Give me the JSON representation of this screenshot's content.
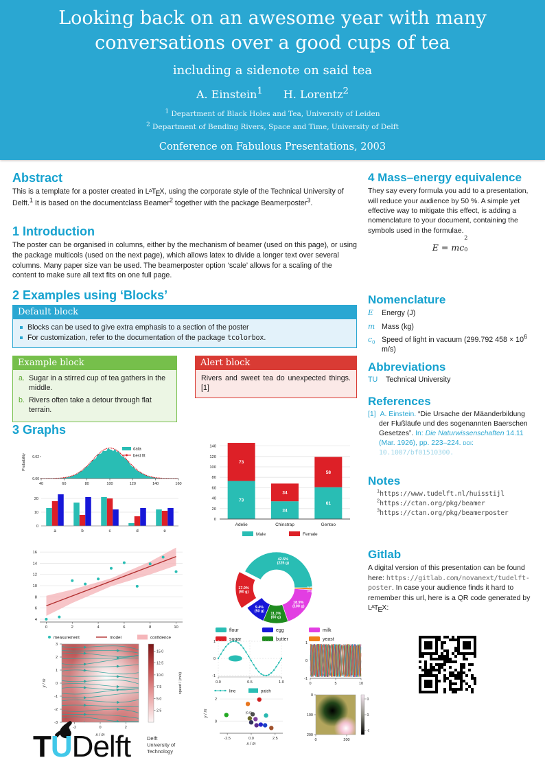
{
  "colors": {
    "header_bg": "#2aa7d2",
    "heading": "#16a2cf",
    "teal": "#29bdb4",
    "red": "#dd2027",
    "blue": "#1717d8",
    "green": "#1f8b1f",
    "magenta": "#e23ee2",
    "orange": "#f08019",
    "pink": "#f5b6ba",
    "darkred": "#b23030",
    "example_green": "#76bf4b",
    "alert_red": "#d93b34"
  },
  "header": {
    "title_line1": "Looking back on an awesome year with many",
    "title_line2": "conversations over a good cups of tea",
    "subtitle": "including a sidenote on said tea",
    "authors": [
      {
        "name": "A. Einstein",
        "sup": "1"
      },
      {
        "name": "H. Lorentz",
        "sup": "2"
      }
    ],
    "affiliations": [
      {
        "sup": "1",
        "text": "Department of Black Holes and Tea, University of Leiden"
      },
      {
        "sup": "2",
        "text": "Department of Bending Rivers, Space and Time, University of Delft"
      }
    ],
    "conference": "Conference on Fabulous Presentations, 2003"
  },
  "abstract": {
    "heading": "Abstract",
    "rich": [
      {
        "t": "This is a template for a poster created in "
      },
      {
        "t": "LaTeX",
        "latex": true
      },
      {
        "t": ", using the corporate style of the Technical University of Delft."
      },
      {
        "t": "1",
        "sup": true
      },
      {
        "t": " It is based on the documentclass Beamer"
      },
      {
        "t": "2",
        "sup": true
      },
      {
        "t": " together with the package Beamerposter"
      },
      {
        "t": "3",
        "sup": true
      },
      {
        "t": "."
      }
    ]
  },
  "introduction": {
    "heading": "1 Introduction",
    "text": "The poster can be organised in columns, either by the mechanism of beamer (used on this page), or using the package multicols (used on the next page), which allows latex to divide a longer text over several columns. Many paper size van be used. The beamerposter option ‘scale’ allows for a scaling of the content to make sure all text fits on one full page."
  },
  "examples": {
    "heading": "2 Examples using ‘Blocks’",
    "default_block": {
      "title": "Default block",
      "bullets": [
        [
          {
            "t": "Blocks can be used to give extra emphasis to a section of the poster"
          }
        ],
        [
          {
            "t": "For customization, refer to the documentation of the package "
          },
          {
            "t": "tcolorbox",
            "mono": true
          },
          {
            "t": "."
          }
        ]
      ]
    },
    "example_block": {
      "title": "Example block",
      "items": [
        {
          "label": "a.",
          "text": "Sugar in a stirred cup of tea gathers in the middle."
        },
        {
          "label": "b.",
          "text": "Rivers often take a detour through flat terrain."
        }
      ]
    },
    "alert_block": {
      "title": "Alert block",
      "text": "Rivers and sweet tea do unexpected things.[1]"
    }
  },
  "graphs": {
    "heading": "3 Graphs"
  },
  "right": {
    "mass_energy": {
      "heading": "4 Mass–energy equivalence",
      "text": "They say every formula you add to a presentation, will reduce your audience by 50 %. A simple yet effective way to mitigate this effect, is adding a nomenclature to your document, containing the symbols used in the formulae.",
      "formula": {
        "lhs": "E",
        "rel": " = ",
        "base": "mc",
        "sub": "0",
        "sup": "2"
      }
    },
    "nomenclature": {
      "heading": "Nomenclature",
      "rows": [
        {
          "sym": "E",
          "sym_sub": "",
          "def": [
            {
              "t": "Energy (J)"
            }
          ]
        },
        {
          "sym": "m",
          "sym_sub": "",
          "def": [
            {
              "t": "Mass (kg)"
            }
          ]
        },
        {
          "sym": "c",
          "sym_sub": "0",
          "def": [
            {
              "t": "Speed of light in vacuum (299.792 458 × 10"
            },
            {
              "t": "6",
              "sup": true
            },
            {
              "t": " m/s)"
            }
          ]
        }
      ]
    },
    "abbreviations": {
      "heading": "Abbreviations",
      "rows": [
        {
          "abbr": "TU",
          "def": "Technical University"
        }
      ]
    },
    "references": {
      "heading": "References",
      "items": [
        {
          "label": "[1]",
          "rich": [
            {
              "t": "A. Einstein. ",
              "cyan": true
            },
            {
              "t": "“Die Ursache der Mäanderbildung der Flußläufe und des sogenannten Baerschen Gesetzes”. "
            },
            {
              "t": "In: ",
              "cyan": true
            },
            {
              "t": "Die Naturwissenschaften ",
              "cyan": true,
              "italic": true
            },
            {
              "t": "14.11 (Mar. 1926), pp. 223–224. ",
              "cyan": true
            },
            {
              "t": "doi: ",
              "cyan": true,
              "smallcaps": true
            },
            {
              "t": "10.1007/bf01510300.",
              "mono": true,
              "lightcyan": true,
              "link": true
            }
          ]
        }
      ]
    },
    "notes": {
      "heading": "Notes",
      "items": [
        {
          "sup": "1",
          "url": "https://www.tudelft.nl/huisstijl"
        },
        {
          "sup": "2",
          "url": "https://ctan.org/pkg/beamer"
        },
        {
          "sup": "3",
          "url": "https://ctan.org/pkg/beamerposter"
        }
      ]
    },
    "gitlab": {
      "heading": "Gitlab",
      "rich": [
        {
          "t": "A digital version of this presentation can be found here: "
        },
        {
          "t": "https://gitlab.com/novanext/tudelft-poster",
          "mono": true,
          "gray": true,
          "link": true
        },
        {
          "t": ". In case your audience finds it hard to remember this url, here is a QR code generated by "
        },
        {
          "t": "LaTeX",
          "latex": true
        },
        {
          "t": ":"
        }
      ]
    }
  },
  "logo": {
    "t": "T",
    "u": "U",
    "delft": "Delft",
    "sub_lines": [
      "Delft",
      "University of",
      "Technology"
    ]
  },
  "chart_data": [
    {
      "id": "hist_fit",
      "type": "area",
      "ylabel": "Probability",
      "xlim": [
        40,
        160
      ],
      "ylim": [
        0,
        0.03
      ],
      "xticks": [
        40,
        60,
        80,
        100,
        120,
        140,
        160
      ],
      "yticks": [
        0,
        0.02
      ],
      "ytick_labels": [
        "0.00",
        "0.02"
      ],
      "gauss": {
        "mean": 100,
        "sd": 15,
        "peak": 0.027
      },
      "legend": [
        {
          "label": "data",
          "color": "teal",
          "kind": "patch"
        },
        {
          "label": "best fit",
          "color": "red",
          "kind": "dotline"
        }
      ]
    },
    {
      "id": "grouped_bars",
      "type": "bar",
      "categories": [
        "a",
        "b",
        "c",
        "d",
        "e"
      ],
      "series": [
        {
          "color": "teal",
          "values": [
            13,
            17,
            21,
            2,
            12
          ]
        },
        {
          "color": "red",
          "values": [
            18,
            8,
            20,
            7,
            11
          ]
        },
        {
          "color": "blue",
          "values": [
            23,
            21,
            12,
            13,
            13
          ]
        }
      ],
      "yticks": [
        0,
        10,
        20
      ],
      "ylim": [
        0,
        25
      ]
    },
    {
      "id": "stacked_bars",
      "type": "bar-stacked",
      "categories": [
        "Adelie",
        "Chinstrap",
        "Gentoo"
      ],
      "series": [
        {
          "name": "Male",
          "color": "teal",
          "values": [
            73,
            34,
            61
          ]
        },
        {
          "name": "Female",
          "color": "red",
          "values": [
            73,
            34,
            58
          ]
        }
      ],
      "yticks": [
        0,
        20,
        40,
        60,
        80,
        100,
        120,
        140
      ],
      "ylim": [
        0,
        150
      ]
    },
    {
      "id": "regression",
      "type": "scatter",
      "xlim": [
        -0.5,
        10.5
      ],
      "ylim": [
        3.5,
        17
      ],
      "xticks": [
        0,
        2,
        4,
        6,
        8,
        10
      ],
      "yticks": [
        4,
        6,
        8,
        10,
        12,
        14,
        16
      ],
      "points": [
        [
          0,
          4.0
        ],
        [
          1,
          4.4
        ],
        [
          2,
          10.9
        ],
        [
          3,
          10.3
        ],
        [
          4,
          11.2
        ],
        [
          5,
          13.1
        ],
        [
          6,
          14.1
        ],
        [
          7,
          9.9
        ],
        [
          8,
          13.9
        ],
        [
          9,
          15.1
        ],
        [
          10,
          12.5
        ]
      ],
      "model": [
        [
          0,
          6.4
        ],
        [
          10,
          15.2
        ]
      ],
      "confidence_upper": [
        [
          0,
          8.2
        ],
        [
          2,
          9.3
        ],
        [
          5,
          11.3
        ],
        [
          8,
          14.3
        ],
        [
          10,
          16.8
        ]
      ],
      "confidence_lower": [
        [
          0,
          4.6
        ],
        [
          2,
          6.9
        ],
        [
          5,
          9.9
        ],
        [
          8,
          12.0
        ],
        [
          10,
          13.6
        ]
      ],
      "legend": [
        {
          "label": "measurement",
          "kind": "dot",
          "color": "teal"
        },
        {
          "label": "model",
          "kind": "line",
          "color": "darkred"
        },
        {
          "label": "confidence",
          "kind": "patch",
          "color": "pink"
        }
      ]
    },
    {
      "id": "donut",
      "type": "pie",
      "slices": [
        {
          "label": "flour",
          "pct": 42.5,
          "label_pct": "42.5%",
          "label_grams": "(225 g)",
          "color": "teal"
        },
        {
          "label": "sugar",
          "pct": 17.0,
          "label_pct": "17.0%",
          "label_grams": "(90 g)",
          "color": "red",
          "explode": true
        },
        {
          "label": "egg",
          "pct": 9.4,
          "label_pct": "9.4%",
          "label_grams": "(50 g)",
          "color": "blue"
        },
        {
          "label": "butter",
          "pct": 11.3,
          "label_pct": "11.3%",
          "label_grams": "(60 g)",
          "color": "green"
        },
        {
          "label": "milk",
          "pct": 18.9,
          "label_pct": "18.9%",
          "label_grams": "(100 g)",
          "color": "magenta"
        },
        {
          "label": "yeast",
          "pct": 0.9,
          "label_pct": "0.9%",
          "label_grams": "(5 g)",
          "color": "orange"
        }
      ],
      "inner_radius_ratio": 0.5,
      "legend_rows": [
        [
          "flour",
          "egg",
          "milk"
        ],
        [
          "sugar",
          "butter",
          "yeast"
        ]
      ]
    },
    {
      "id": "streamplot",
      "type": "vector-field",
      "xlabel": "x / m",
      "ylabel": "y / m",
      "yticks": [
        3,
        2,
        1,
        0,
        -1,
        -2,
        -3
      ],
      "xticks": [
        -2,
        0,
        2
      ],
      "colorbar": {
        "label": "speed / (m/s)",
        "ticks": [
          "2.5",
          "5.0",
          "7.5",
          "10.0",
          "12.5",
          "15.0"
        ]
      }
    },
    {
      "id": "line_patch",
      "type": "line",
      "xticks": [
        "0.0",
        "0.5",
        "1.0"
      ],
      "xtick_vals": [
        0,
        0.5,
        1
      ],
      "yticks": [
        "1",
        "0",
        "-1"
      ],
      "ytick_vals": [
        1,
        0,
        -1
      ],
      "patch": {
        "cx": 0.27,
        "cy": 0
      },
      "legend": [
        "line",
        "patch"
      ]
    },
    {
      "id": "phase_lines",
      "type": "line-multi",
      "xticks": [
        "0",
        "5",
        "10"
      ],
      "yticks": [
        "1",
        "0",
        "-1"
      ],
      "lines": 12
    },
    {
      "id": "scatter_field",
      "type": "scatter",
      "xlabel": "x / m",
      "ylabel": "y / m",
      "xticks": [
        "-2.5",
        "0.0",
        "2.5"
      ],
      "xtick_vals": [
        -2.5,
        0,
        2.5
      ],
      "yticks": [
        "0",
        "2"
      ],
      "ytick_vals": [
        0,
        2
      ],
      "annotation": "(0,0)",
      "points": [
        [
          -2.6,
          0.55,
          "#21a821"
        ],
        [
          -0.35,
          1.55,
          "#e8761e"
        ],
        [
          0.85,
          1.95,
          "#cf1f1f"
        ],
        [
          0.15,
          0.62,
          "#4f4f4f"
        ],
        [
          1.55,
          0.5,
          "#29b8b0"
        ],
        [
          -0.15,
          0.25,
          "#6b6b2a"
        ],
        [
          0.45,
          0.18,
          "#7e3f9e"
        ],
        [
          0.0,
          -0.12,
          "#31315e"
        ],
        [
          0.55,
          -0.38,
          "#5a2d8e"
        ],
        [
          1.0,
          -0.32,
          "#2222cc"
        ],
        [
          1.45,
          -0.38,
          "#1a40c8"
        ],
        [
          2.1,
          -0.62,
          "#a0522d"
        ]
      ]
    },
    {
      "id": "imshow",
      "type": "heatmap",
      "xticks": [
        "0",
        "200"
      ],
      "yticks": [
        "0",
        "100",
        "200"
      ],
      "colorbar_ticks": [
        "0.1",
        "0.0",
        "-0.1"
      ]
    }
  ]
}
